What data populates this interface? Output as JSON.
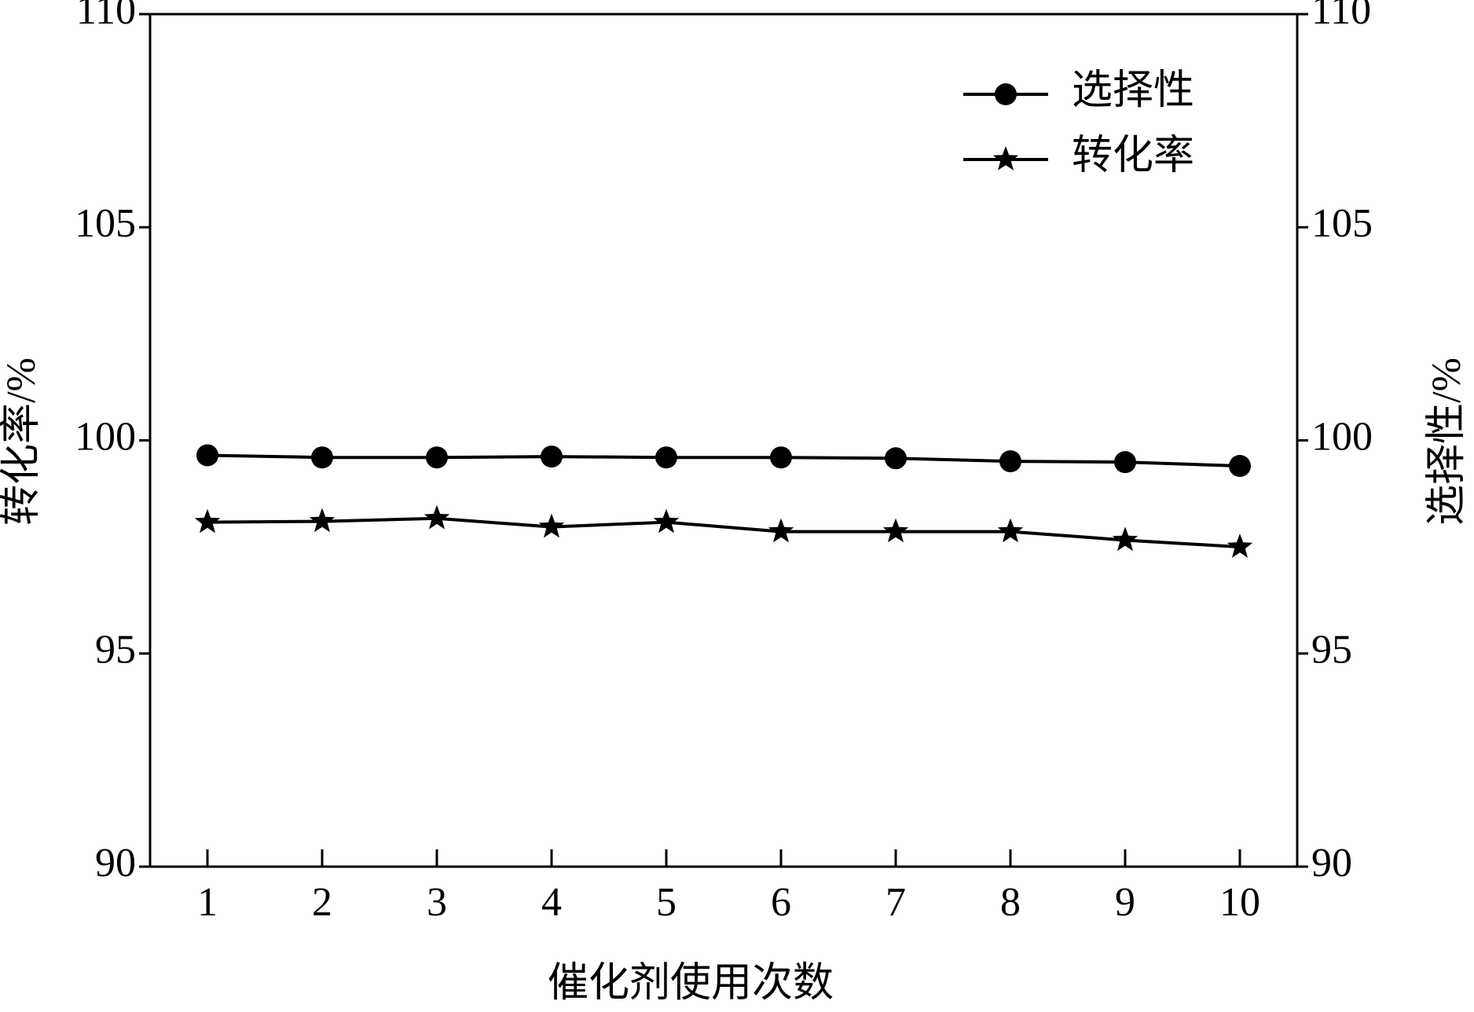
{
  "chart_data": {
    "type": "line",
    "x_label": "催化剂使用次数",
    "y_label": "转化率/%",
    "y2_label": "选择性/%",
    "x": [
      1,
      2,
      3,
      4,
      5,
      6,
      7,
      8,
      9,
      10
    ],
    "xlim": [
      0.5,
      10.5
    ],
    "xticks": [
      1,
      2,
      3,
      4,
      5,
      6,
      7,
      8,
      9,
      10
    ],
    "ylim": [
      90,
      110
    ],
    "yticks": [
      90,
      95,
      100,
      105,
      110
    ],
    "y2lim": [
      90,
      110
    ],
    "y2ticks": [
      90,
      95,
      100,
      105,
      110
    ],
    "legend": "upper right",
    "series": [
      {
        "name": "选择性",
        "color": "#000000",
        "marker": "circle",
        "axis": "y2",
        "values": [
          99.65,
          99.6,
          99.6,
          99.62,
          99.6,
          99.6,
          99.58,
          99.51,
          99.49,
          99.4
        ]
      },
      {
        "name": "转化率",
        "color": "#000000",
        "marker": "star",
        "values": [
          98.08,
          98.1,
          98.17,
          97.97,
          98.08,
          97.86,
          97.86,
          97.86,
          97.66,
          97.5
        ]
      }
    ]
  }
}
